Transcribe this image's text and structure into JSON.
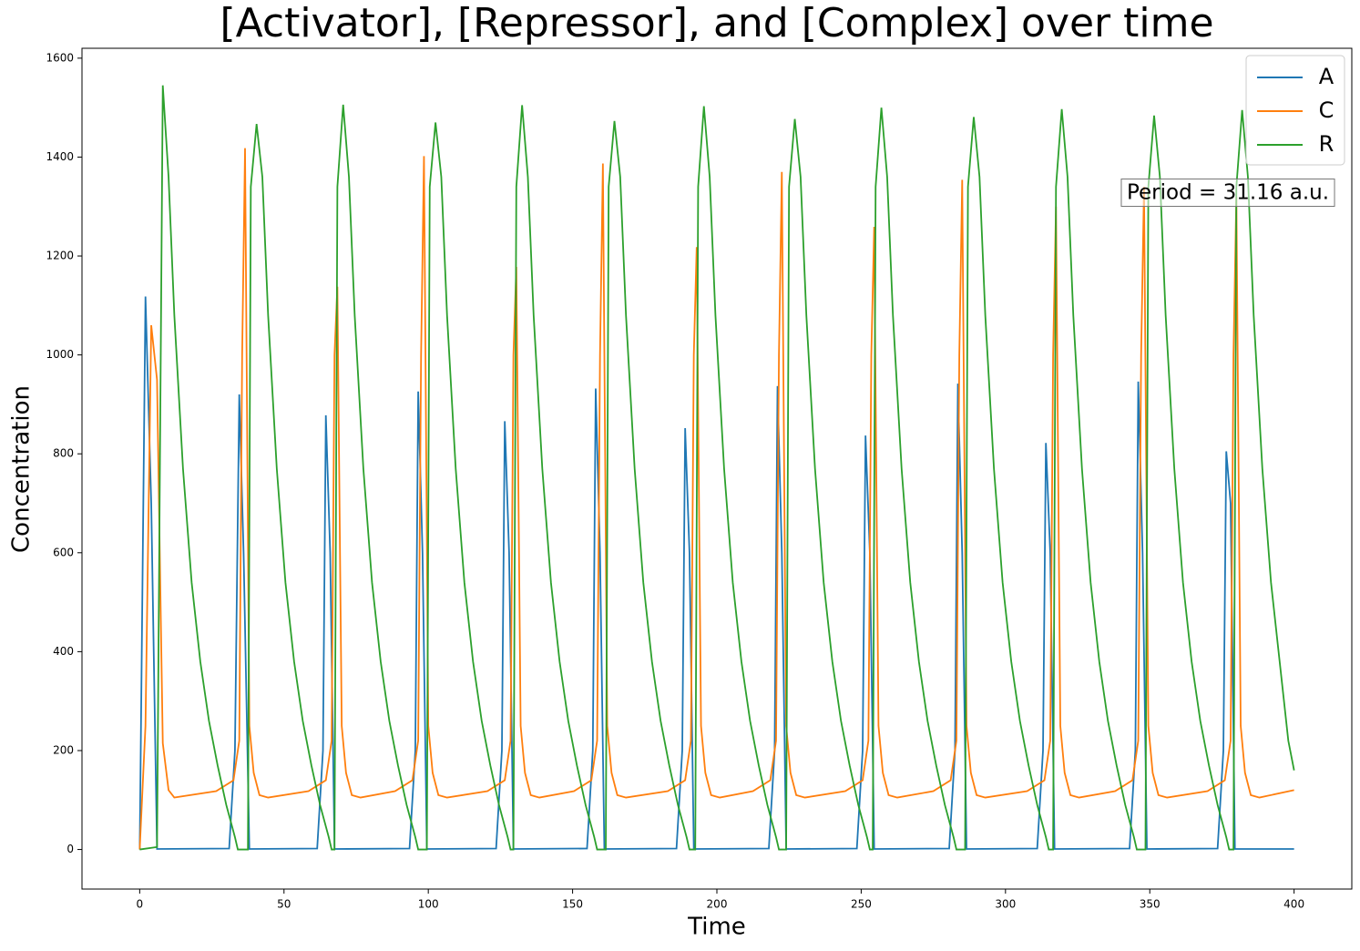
{
  "chart_data": {
    "type": "line",
    "title": "[Activator], [Repressor], and [Complex] over time",
    "xlabel": "Time",
    "ylabel": "Concentration",
    "annotation": "Period = 31.16 a.u.",
    "xlim": [
      -20,
      420
    ],
    "ylim": [
      -80,
      1620
    ],
    "xticks": [
      0,
      50,
      100,
      150,
      200,
      250,
      300,
      350,
      400
    ],
    "yticks": [
      0,
      200,
      400,
      600,
      800,
      1000,
      1200,
      1400,
      1600
    ],
    "legend": "upper right",
    "grid": false,
    "series": [
      {
        "name": "A",
        "color": "#1f77b4",
        "x": [
          0,
          2,
          4,
          6,
          31,
          33,
          34.5,
          36,
          38,
          61.5,
          63.5,
          64.5,
          66,
          67.5,
          93.5,
          95.5,
          96.5,
          98,
          99.5,
          123.5,
          125.5,
          126.5,
          128,
          129.5,
          155,
          157,
          158,
          159.5,
          161,
          186,
          188,
          189,
          190.5,
          192,
          218,
          220,
          221,
          222.5,
          224,
          248.5,
          250.5,
          251.5,
          253,
          254.5,
          280.5,
          282.5,
          283.5,
          285,
          286.5,
          311,
          313,
          314,
          315.5,
          317,
          343,
          345,
          346,
          347.5,
          349,
          373.5,
          375.5,
          376.5,
          378,
          379.5,
          400
        ],
        "values": [
          0,
          1118,
          700,
          1,
          2,
          200,
          920,
          600,
          1,
          2,
          200,
          878,
          600,
          1,
          2,
          200,
          926,
          600,
          1,
          2,
          200,
          866,
          600,
          1,
          2,
          200,
          932,
          600,
          1,
          2,
          200,
          852,
          600,
          1,
          2,
          200,
          937,
          600,
          1,
          2,
          200,
          837,
          600,
          1,
          2,
          200,
          942,
          600,
          1,
          2,
          200,
          822,
          600,
          1,
          2,
          200,
          946,
          600,
          1,
          2,
          200,
          805,
          700,
          1,
          1
        ]
      },
      {
        "name": "C",
        "color": "#ff7f0e",
        "x": [
          0,
          2,
          4,
          6,
          8,
          10,
          12,
          26.5,
          32.5,
          34.5,
          35.5,
          36.5,
          38,
          39.5,
          41.5,
          44.5,
          58.5,
          64.5,
          66.5,
          67.5,
          68.5,
          70,
          71.5,
          73.5,
          76.5,
          88.5,
          94.5,
          96.5,
          97.5,
          98.5,
          100,
          101.5,
          103.5,
          106.5,
          120.5,
          126.5,
          128.5,
          129.5,
          130.5,
          132,
          133.5,
          135.5,
          138.5,
          150.5,
          156.5,
          158.5,
          159.5,
          160.5,
          162,
          163.5,
          165.5,
          168.5,
          183,
          189,
          191,
          192,
          193,
          194.5,
          196,
          198,
          201,
          212.5,
          218.5,
          220.5,
          221.5,
          222.5,
          224,
          225.5,
          227.5,
          230.5,
          244.5,
          250.5,
          252.5,
          253.5,
          254.5,
          256,
          257.5,
          259.5,
          262.5,
          275,
          281,
          283,
          284,
          285,
          286.5,
          288,
          290,
          293,
          307.5,
          313.5,
          315.5,
          316.5,
          317.5,
          319,
          320.5,
          322.5,
          325.5,
          338,
          344,
          346,
          347,
          348,
          349.5,
          351,
          353,
          356,
          370,
          376,
          378,
          379,
          380,
          381.5,
          383,
          385,
          388,
          400
        ],
        "values": [
          0,
          250,
          1060,
          950,
          215,
          120,
          105,
          118,
          140,
          220,
          1000,
          1418,
          250,
          155,
          110,
          105,
          118,
          140,
          220,
          1000,
          1138,
          250,
          155,
          110,
          105,
          118,
          140,
          220,
          1000,
          1402,
          250,
          155,
          110,
          105,
          118,
          140,
          220,
          1000,
          1178,
          250,
          155,
          110,
          105,
          118,
          140,
          220,
          1000,
          1387,
          250,
          155,
          110,
          105,
          118,
          140,
          220,
          1000,
          1218,
          250,
          155,
          110,
          105,
          118,
          140,
          220,
          1000,
          1370,
          250,
          155,
          110,
          105,
          118,
          140,
          220,
          1000,
          1259,
          250,
          155,
          110,
          105,
          118,
          140,
          220,
          1000,
          1354,
          250,
          155,
          110,
          105,
          118,
          140,
          220,
          1000,
          1300,
          250,
          155,
          110,
          105,
          118,
          140,
          220,
          1000,
          1340,
          250,
          155,
          110,
          105,
          118,
          140,
          220,
          1000,
          1320,
          250,
          155,
          110,
          105,
          120
        ]
      },
      {
        "name": "R",
        "color": "#2ca02c",
        "x": [
          0,
          6,
          8,
          10,
          12,
          15,
          18,
          21,
          24,
          27,
          30,
          33,
          34,
          37.5,
          38.5,
          40.5,
          42.5,
          44.5,
          47.5,
          50.5,
          53.5,
          56.5,
          59.5,
          62.5,
          65.5,
          66.5,
          67.5,
          68.5,
          70.5,
          72.5,
          74.5,
          77.5,
          80.5,
          83.5,
          86.5,
          89.5,
          92.5,
          95.5,
          96.5,
          99.5,
          100.5,
          102.5,
          104.5,
          106.5,
          109.5,
          112.5,
          115.5,
          118.5,
          121.5,
          124.5,
          127.5,
          128.5,
          129.5,
          130.5,
          132.5,
          134.5,
          136.5,
          139.5,
          142.5,
          145.5,
          148.5,
          151.5,
          154.5,
          157.5,
          158.5,
          161.5,
          162.5,
          164.5,
          166.5,
          168.5,
          171.5,
          174.5,
          177.5,
          180.5,
          183.5,
          186.5,
          189.5,
          190.5,
          192.5,
          193.5,
          195.5,
          197.5,
          199.5,
          202.5,
          205.5,
          208.5,
          211.5,
          214.5,
          217.5,
          220.5,
          221.5,
          224,
          225,
          227,
          229,
          231,
          234,
          237,
          240,
          243,
          246,
          249,
          252,
          253,
          254,
          255,
          257,
          259,
          261,
          264,
          267,
          270,
          273,
          276,
          279,
          282,
          283,
          286,
          287,
          289,
          291,
          293,
          296,
          299,
          302,
          305,
          308,
          311,
          314,
          315,
          316.5,
          317.5,
          319.5,
          321.5,
          323.5,
          326.5,
          329.5,
          332.5,
          335.5,
          338.5,
          341.5,
          344.5,
          345.5,
          348.5,
          349.5,
          351.5,
          353.5,
          355.5,
          358.5,
          361.5,
          364.5,
          367.5,
          370.5,
          373.5,
          376.5,
          377.5,
          379,
          380,
          382,
          384,
          386,
          389,
          392,
          395,
          398,
          400
        ],
        "values": [
          0,
          5,
          1545,
          1360,
          1080,
          770,
          540,
          380,
          260,
          170,
          90,
          25,
          0,
          0,
          1340,
          1467,
          1360,
          1080,
          770,
          540,
          380,
          260,
          170,
          90,
          25,
          0,
          0,
          1340,
          1506,
          1360,
          1080,
          770,
          540,
          380,
          260,
          170,
          90,
          25,
          0,
          0,
          1340,
          1470,
          1360,
          1080,
          770,
          540,
          380,
          260,
          170,
          90,
          25,
          0,
          0,
          1340,
          1505,
          1360,
          1080,
          770,
          540,
          380,
          260,
          170,
          90,
          25,
          0,
          0,
          1340,
          1473,
          1360,
          1080,
          770,
          540,
          380,
          260,
          170,
          90,
          25,
          0,
          0,
          1340,
          1503,
          1360,
          1080,
          770,
          540,
          380,
          260,
          170,
          90,
          25,
          0,
          0,
          1340,
          1477,
          1360,
          1080,
          770,
          540,
          380,
          260,
          170,
          90,
          25,
          0,
          0,
          1340,
          1500,
          1360,
          1080,
          770,
          540,
          380,
          260,
          170,
          90,
          25,
          0,
          0,
          1340,
          1481,
          1360,
          1080,
          770,
          540,
          380,
          260,
          170,
          90,
          25,
          0,
          0,
          1340,
          1497,
          1360,
          1080,
          770,
          540,
          380,
          260,
          170,
          90,
          25,
          0,
          0,
          1340,
          1484,
          1360,
          1080,
          770,
          540,
          380,
          260,
          170,
          90,
          25,
          0,
          0,
          1340,
          1495,
          1360,
          1080,
          770,
          540,
          380,
          220,
          160
        ]
      }
    ]
  }
}
